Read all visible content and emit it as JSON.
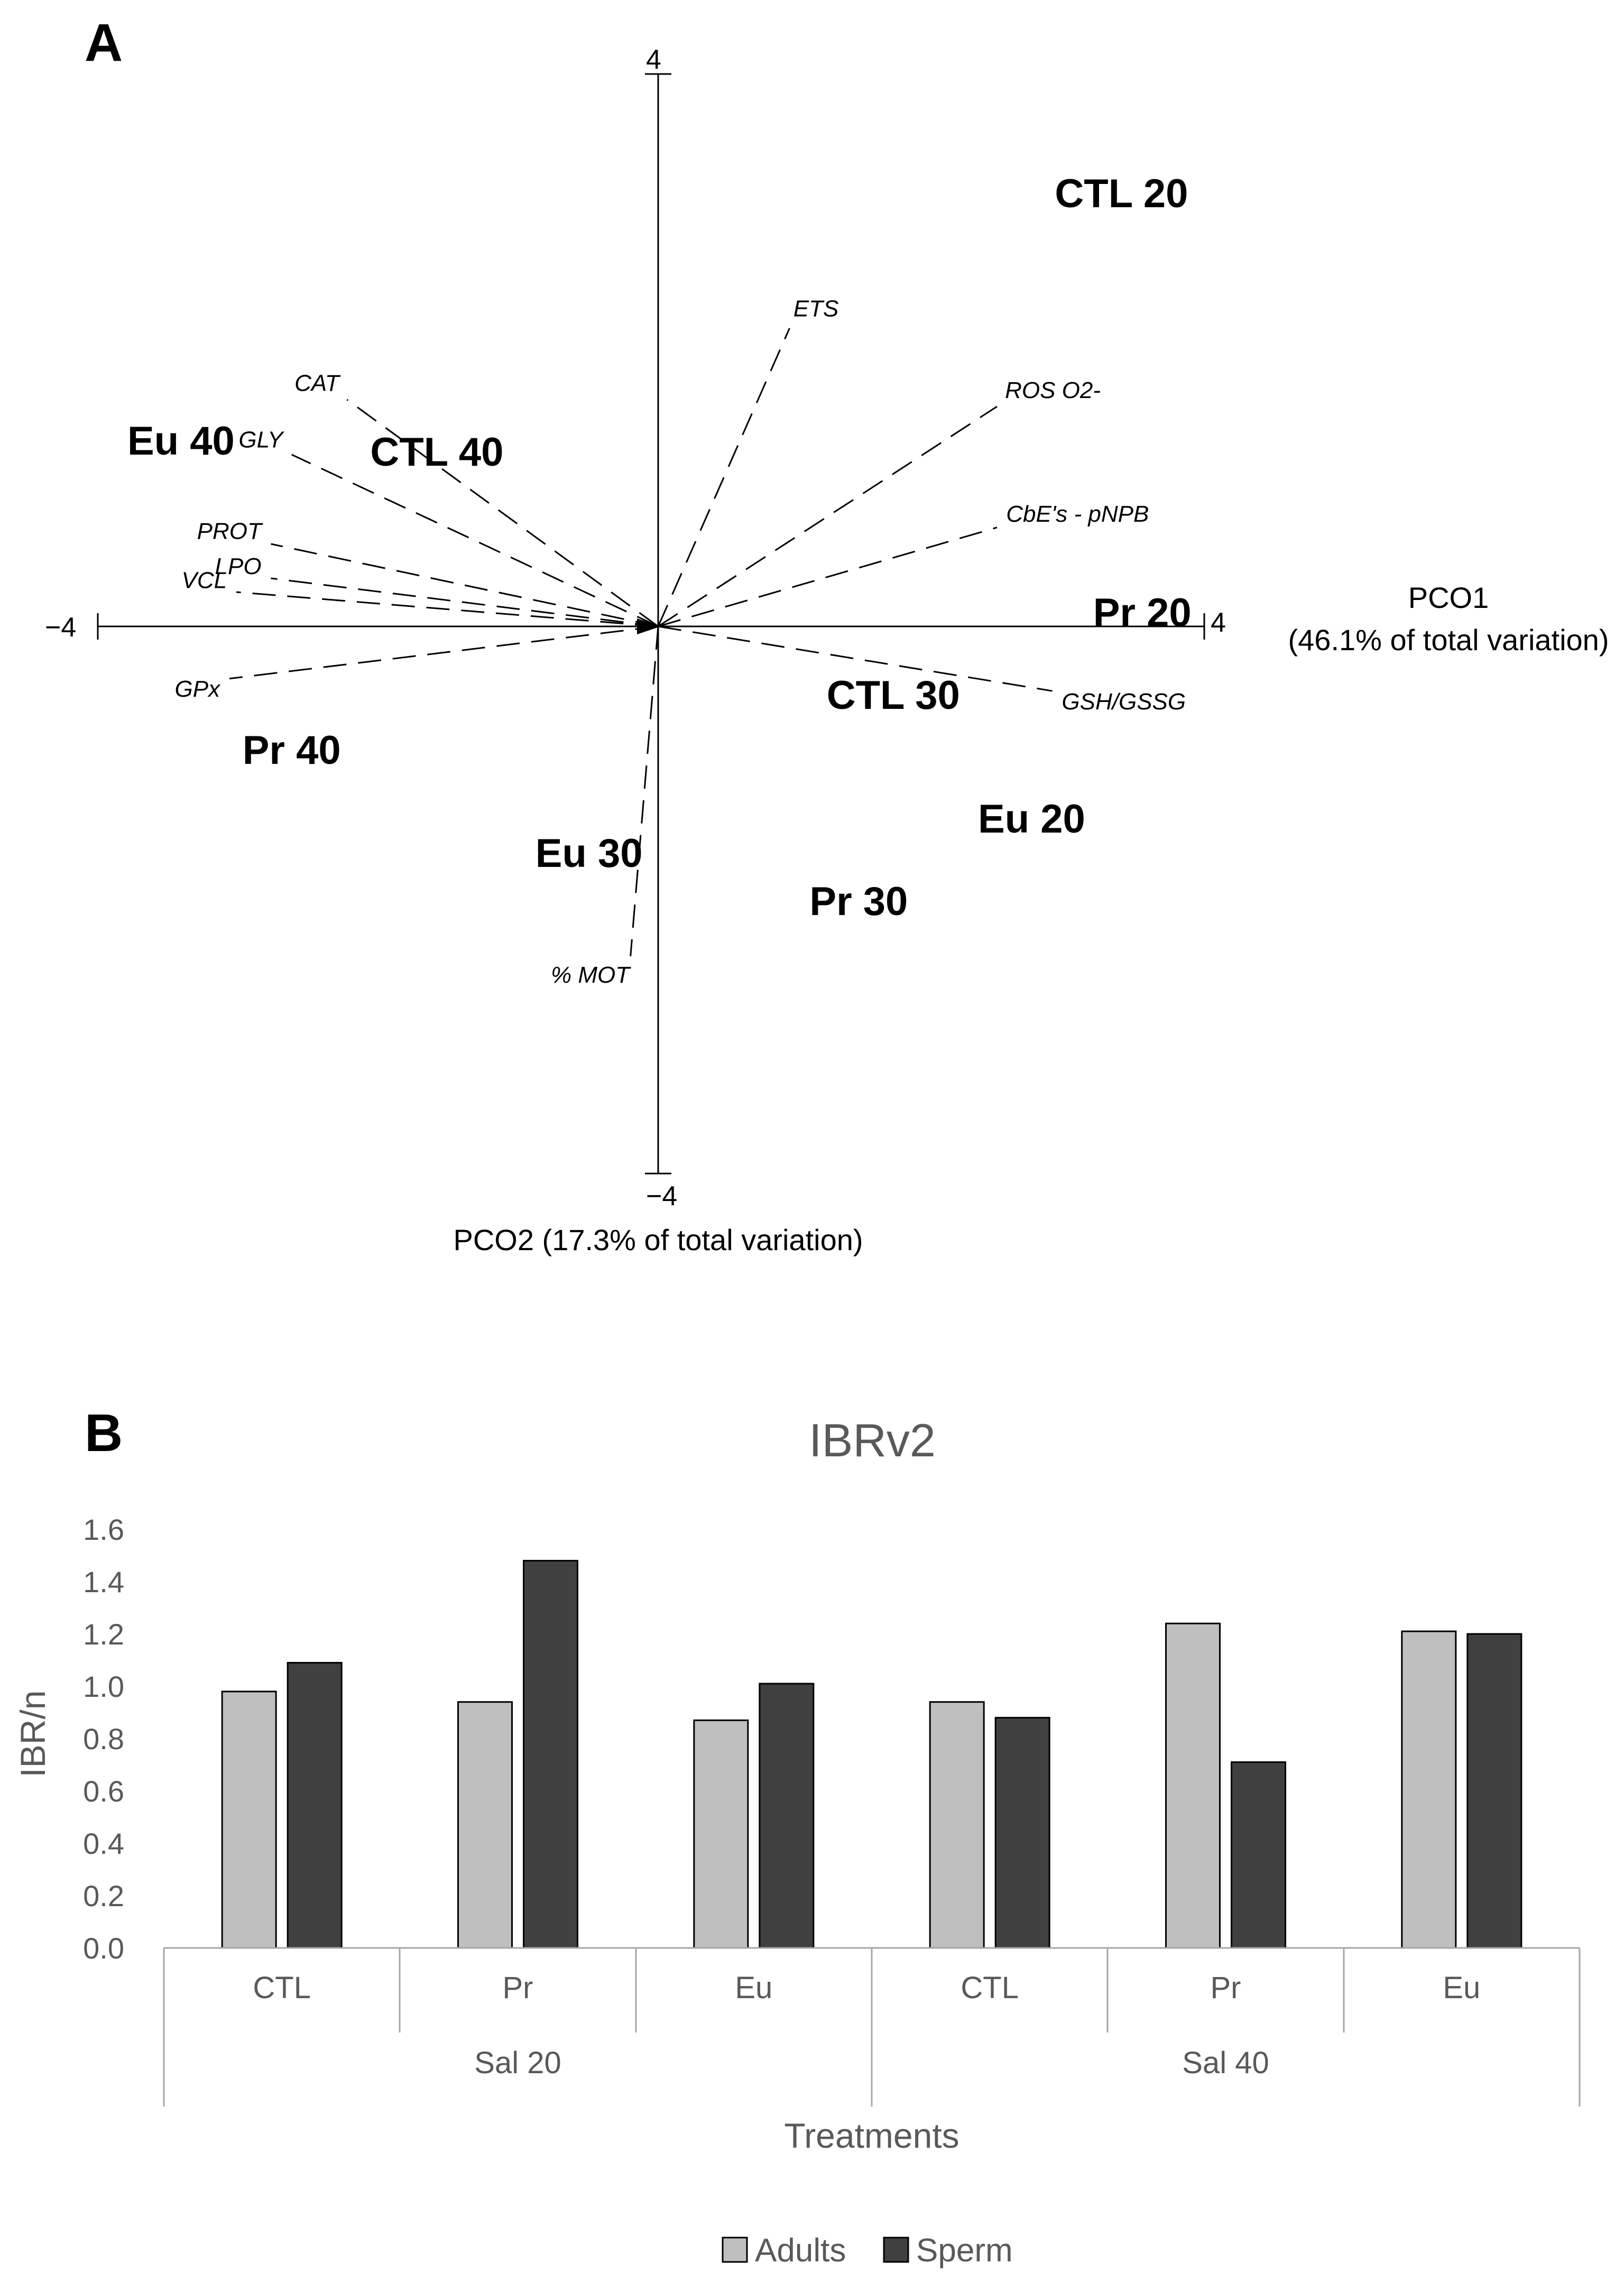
{
  "panel_a": {
    "letter": "A",
    "x_axis": {
      "title_line1": "PCO1",
      "title_line2": "(46.1% of total variation)",
      "min_label": "−4",
      "max_label": "4"
    },
    "y_axis": {
      "title": "PCO2 (17.3% of total variation)",
      "min_label": "−4",
      "max_label": "4"
    }
  },
  "panel_b": {
    "letter": "B",
    "legend": {
      "series1": "Adults",
      "series2": "Sperm"
    }
  },
  "chart_data": [
    {
      "type": "scatter",
      "title": "",
      "xlabel": "PCO1 (46.1% of total variation)",
      "ylabel": "PCO2 (17.3% of total variation)",
      "xlim": [
        -4,
        4
      ],
      "ylim": [
        -4,
        4
      ],
      "points": [
        {
          "label": "CTL 20",
          "x": 3.35,
          "y": 3.15
        },
        {
          "label": "Eu 40",
          "x": -3.45,
          "y": 1.35
        },
        {
          "label": "CTL 40",
          "x": -1.6,
          "y": 1.27
        },
        {
          "label": "Pr 20",
          "x": 3.5,
          "y": 0.1
        },
        {
          "label": "CTL 30",
          "x": 1.7,
          "y": -0.5
        },
        {
          "label": "Pr 40",
          "x": -2.65,
          "y": -0.9
        },
        {
          "label": "Eu 20",
          "x": 2.7,
          "y": -1.4
        },
        {
          "label": "Eu 30",
          "x": -0.5,
          "y": -1.65
        },
        {
          "label": "Pr 30",
          "x": 1.45,
          "y": -2.0
        }
      ],
      "vectors": [
        {
          "label": "ETS",
          "x": 0.95,
          "y": 2.17
        },
        {
          "label": "ROS O2-",
          "x": 2.45,
          "y": 1.6
        },
        {
          "label": "CbE's - pNPB",
          "x": 2.45,
          "y": 0.72
        },
        {
          "label": "GSH/GSSG",
          "x": 2.85,
          "y": -0.47
        },
        {
          "label": "% MOT",
          "x": -0.2,
          "y": -2.4
        },
        {
          "label": "GPx",
          "x": -3.1,
          "y": -0.38
        },
        {
          "label": "VCL",
          "x": -3.05,
          "y": 0.25
        },
        {
          "label": "LPO",
          "x": -2.8,
          "y": 0.35
        },
        {
          "label": "PROT",
          "x": -2.8,
          "y": 0.6
        },
        {
          "label": "GLY",
          "x": -2.65,
          "y": 1.25
        },
        {
          "label": "CAT",
          "x": -2.25,
          "y": 1.65
        }
      ]
    },
    {
      "type": "bar",
      "title": "IBRv2",
      "xlabel": "Treatments",
      "ylabel": "IBR/n",
      "ylim": [
        0,
        1.6
      ],
      "yticks": [
        "0.0",
        "0.2",
        "0.4",
        "0.6",
        "0.8",
        "1.0",
        "1.2",
        "1.4",
        "1.6"
      ],
      "categories": [
        "CTL",
        "Pr",
        "Eu",
        "CTL",
        "Pr",
        "Eu"
      ],
      "groups": [
        "Sal 20",
        "Sal 40"
      ],
      "series": [
        {
          "name": "Adults",
          "color": "#bfbfbf",
          "values": [
            0.98,
            0.94,
            0.87,
            0.94,
            1.24,
            1.21
          ]
        },
        {
          "name": "Sperm",
          "color": "#404040",
          "values": [
            1.09,
            1.48,
            1.01,
            0.88,
            0.71,
            1.2
          ]
        }
      ]
    }
  ]
}
